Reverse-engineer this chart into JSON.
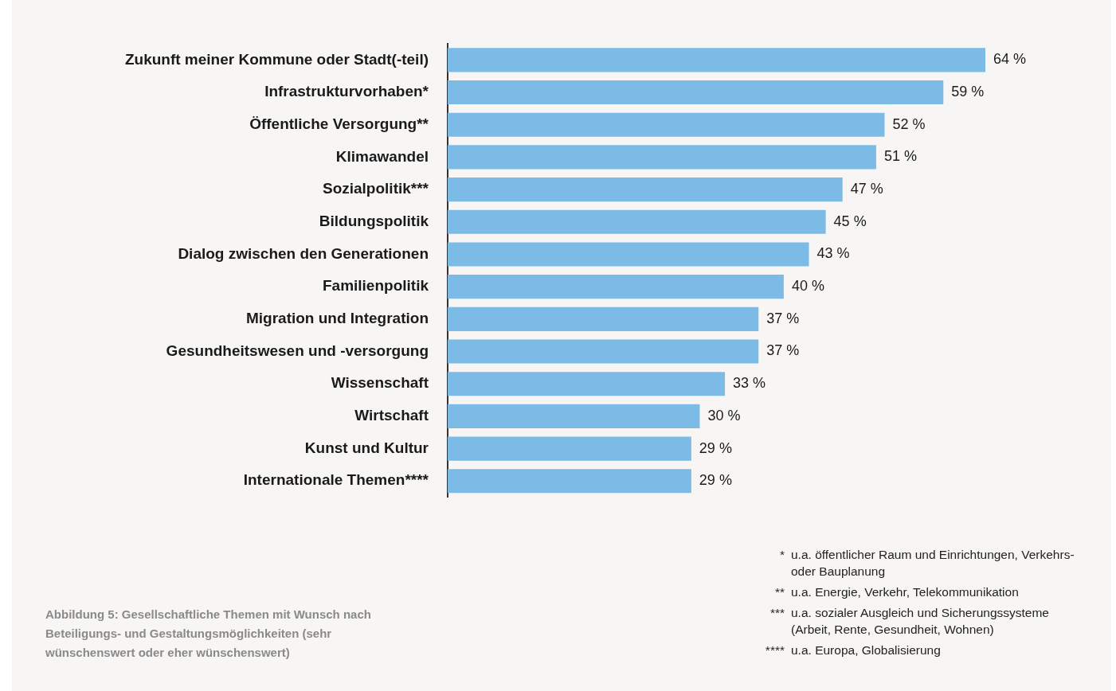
{
  "chart_data": {
    "type": "bar",
    "orientation": "horizontal",
    "categories": [
      "Zukunft meiner Kommune oder Stadt(-teil)",
      "Infrastrukturvorhaben*",
      "Öffentliche Versorgung**",
      "Klimawandel",
      "Sozialpolitik***",
      "Bildungspolitik",
      "Dialog zwischen den Generationen",
      "Familienpolitik",
      "Migration und Integration",
      "Gesundheitswesen und -versorgung",
      "Wissenschaft",
      "Wirtschaft",
      "Kunst und Kultur",
      "Internationale Themen****"
    ],
    "values": [
      64,
      59,
      52,
      51,
      47,
      45,
      43,
      40,
      37,
      37,
      33,
      30,
      29,
      29
    ],
    "value_labels": [
      "64 %",
      "59 %",
      "52 %",
      "51 %",
      "47 %",
      "45 %",
      "43 %",
      "40 %",
      "37 %",
      "37 %",
      "33 %",
      "30 %",
      "29 %",
      "29 %"
    ],
    "color": "#7bbbe5",
    "tick_labels": "y",
    "legend": false,
    "annotations": [
      "Abbildung 5: Gesellschaftliche Themen mit Wunsch nach Beteiligungs- und Gestaltungsmöglichkeiten (sehr wünschenswert oder eher wünschenswert)",
      "* u.a. öffentlicher Raum und Einrichtungen, Verkehrs- oder Bauplanung",
      "** u.a. Energie, Verkehr, Telekommunikation",
      "*** u.a. sozialer Ausgleich und Sicherungssysteme (Arbeit, Rente, Gesundheit, Wohnen)",
      "**** u.a. Europa, Globalisierung"
    ]
  }
}
